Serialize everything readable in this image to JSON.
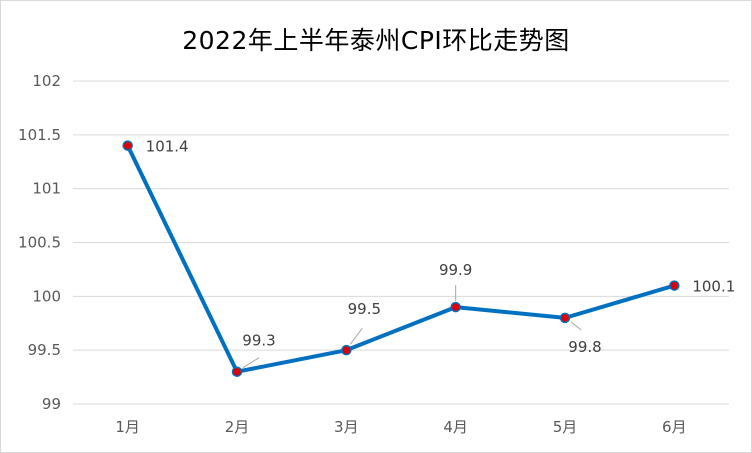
{
  "chart_data": {
    "type": "line",
    "title": "2022年上半年泰州CPI环比走势图",
    "xlabel": "",
    "ylabel": "",
    "categories": [
      "1月",
      "2月",
      "3月",
      "4月",
      "5月",
      "6月"
    ],
    "series": [
      {
        "values": [
          101.4,
          99.3,
          99.5,
          99.9,
          99.8,
          100.1
        ],
        "color": "#0070c0"
      }
    ],
    "data_labels": [
      "101.4",
      "99.3",
      "99.5",
      "99.9",
      "99.8",
      "100.1"
    ],
    "ylim": [
      99,
      102
    ],
    "yticks": [
      "99",
      "99.5",
      "100",
      "100.5",
      "101",
      "101.5",
      "102"
    ],
    "grid": true,
    "legend": "none",
    "marker_color": "#e00000",
    "gridline_color": "#d9d9d9"
  }
}
